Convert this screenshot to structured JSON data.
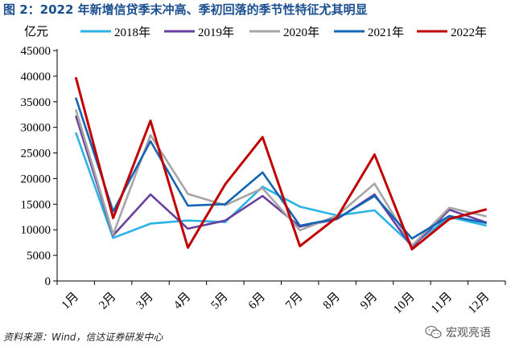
{
  "figure": {
    "title": "图 2：2022 年新增信贷季末冲高、季初回落的季节性特征尤其明显",
    "source": "资料来源：Wind，信达证券研发中心",
    "watermark": "宏观亮语",
    "watermark_icon": "wechat-icon"
  },
  "chart_data": {
    "type": "line",
    "title": "图 2：2022 年新增信贷季末冲高、季初回落的季节性特征尤其明显",
    "ylabel": "亿元",
    "xlabel": "",
    "ylim": [
      0,
      45000
    ],
    "yticks": [
      0,
      5000,
      10000,
      15000,
      20000,
      25000,
      30000,
      35000,
      40000,
      45000
    ],
    "categories": [
      "1月",
      "2月",
      "3月",
      "4月",
      "5月",
      "6月",
      "7月",
      "8月",
      "9月",
      "10月",
      "11月",
      "12月"
    ],
    "grid": false,
    "legend_position": "top",
    "series": [
      {
        "name": "2018年",
        "color": "#2bb3e6",
        "values": [
          29000,
          8400,
          11200,
          11800,
          11500,
          18400,
          14500,
          12800,
          13800,
          7000,
          12500,
          10800
        ]
      },
      {
        "name": "2019年",
        "color": "#6a3fa0",
        "values": [
          32300,
          8900,
          16900,
          10200,
          11800,
          16600,
          10600,
          12100,
          16900,
          6600,
          13900,
          11400
        ]
      },
      {
        "name": "2020年",
        "color": "#a6a6a6",
        "values": [
          33500,
          9100,
          28500,
          17000,
          14800,
          18100,
          9900,
          12800,
          19000,
          6900,
          14300,
          12600
        ]
      },
      {
        "name": "2021年",
        "color": "#1565b5",
        "values": [
          35800,
          13600,
          27300,
          14700,
          15000,
          21200,
          10800,
          12200,
          16600,
          8300,
          12700,
          11300
        ]
      },
      {
        "name": "2022年",
        "color": "#c00000",
        "values": [
          39800,
          12300,
          31300,
          6500,
          18900,
          28100,
          6800,
          12500,
          24700,
          6200,
          12100,
          14000
        ]
      }
    ]
  }
}
